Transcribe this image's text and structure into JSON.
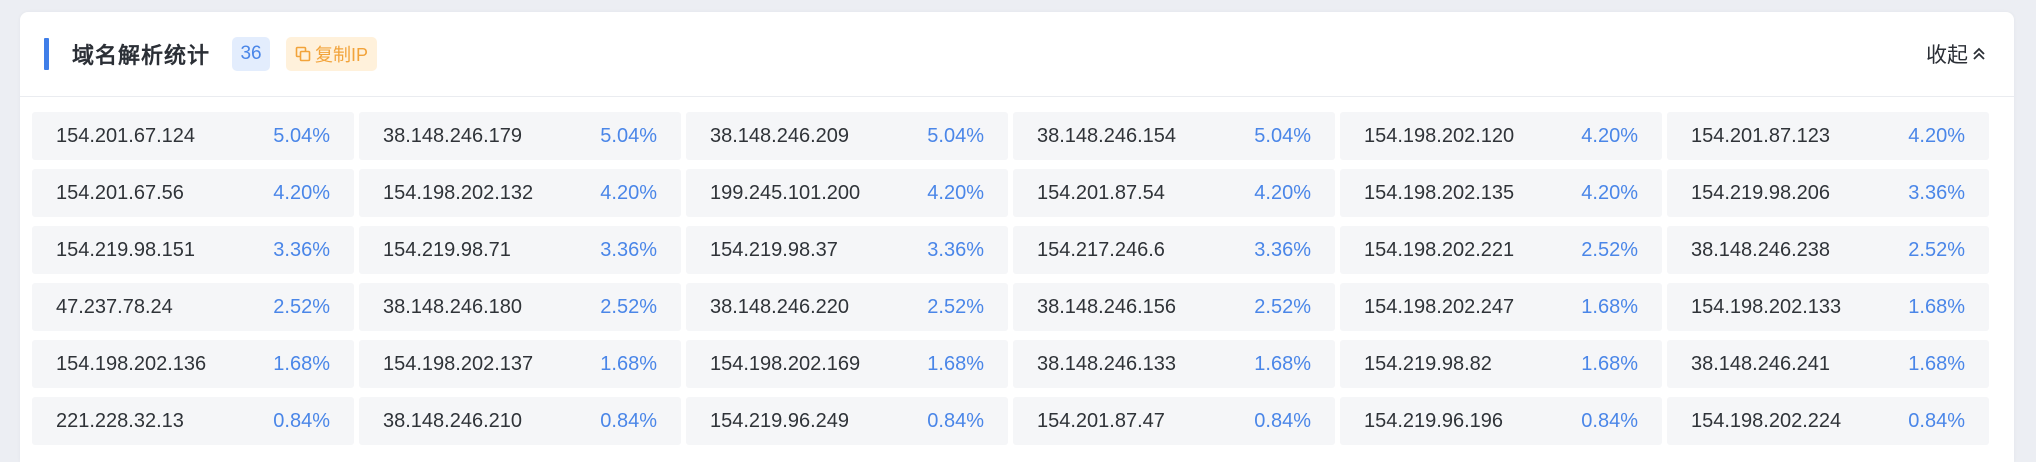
{
  "header": {
    "title": "域名解析统计",
    "count": "36",
    "copy_label": "复制IP",
    "collapse_label": "收起"
  },
  "stats": [
    {
      "ip": "154.201.67.124",
      "pct": "5.04%"
    },
    {
      "ip": "38.148.246.179",
      "pct": "5.04%"
    },
    {
      "ip": "38.148.246.209",
      "pct": "5.04%"
    },
    {
      "ip": "38.148.246.154",
      "pct": "5.04%"
    },
    {
      "ip": "154.198.202.120",
      "pct": "4.20%"
    },
    {
      "ip": "154.201.87.123",
      "pct": "4.20%"
    },
    {
      "ip": "154.201.67.56",
      "pct": "4.20%"
    },
    {
      "ip": "154.198.202.132",
      "pct": "4.20%"
    },
    {
      "ip": "199.245.101.200",
      "pct": "4.20%"
    },
    {
      "ip": "154.201.87.54",
      "pct": "4.20%"
    },
    {
      "ip": "154.198.202.135",
      "pct": "4.20%"
    },
    {
      "ip": "154.219.98.206",
      "pct": "3.36%"
    },
    {
      "ip": "154.219.98.151",
      "pct": "3.36%"
    },
    {
      "ip": "154.219.98.71",
      "pct": "3.36%"
    },
    {
      "ip": "154.219.98.37",
      "pct": "3.36%"
    },
    {
      "ip": "154.217.246.6",
      "pct": "3.36%"
    },
    {
      "ip": "154.198.202.221",
      "pct": "2.52%"
    },
    {
      "ip": "38.148.246.238",
      "pct": "2.52%"
    },
    {
      "ip": "47.237.78.24",
      "pct": "2.52%"
    },
    {
      "ip": "38.148.246.180",
      "pct": "2.52%"
    },
    {
      "ip": "38.148.246.220",
      "pct": "2.52%"
    },
    {
      "ip": "38.148.246.156",
      "pct": "2.52%"
    },
    {
      "ip": "154.198.202.247",
      "pct": "1.68%"
    },
    {
      "ip": "154.198.202.133",
      "pct": "1.68%"
    },
    {
      "ip": "154.198.202.136",
      "pct": "1.68%"
    },
    {
      "ip": "154.198.202.137",
      "pct": "1.68%"
    },
    {
      "ip": "154.198.202.169",
      "pct": "1.68%"
    },
    {
      "ip": "38.148.246.133",
      "pct": "1.68%"
    },
    {
      "ip": "154.219.98.82",
      "pct": "1.68%"
    },
    {
      "ip": "38.148.246.241",
      "pct": "1.68%"
    },
    {
      "ip": "221.228.32.13",
      "pct": "0.84%"
    },
    {
      "ip": "38.148.246.210",
      "pct": "0.84%"
    },
    {
      "ip": "154.219.96.249",
      "pct": "0.84%"
    },
    {
      "ip": "154.201.87.47",
      "pct": "0.84%"
    },
    {
      "ip": "154.219.96.196",
      "pct": "0.84%"
    },
    {
      "ip": "154.198.202.224",
      "pct": "0.84%"
    }
  ]
}
